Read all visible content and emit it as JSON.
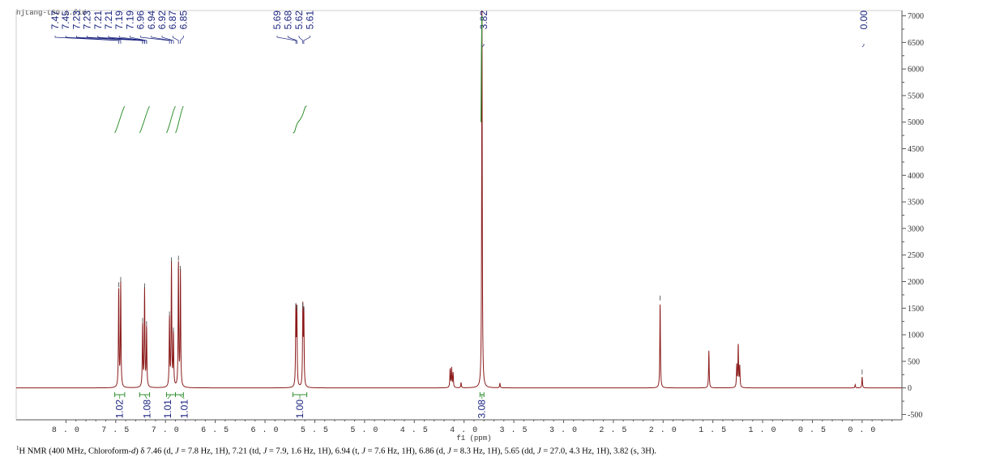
{
  "filename": "hjtang-t50.1.fid",
  "caption": {
    "nucleus_sup": "1",
    "before_d": "H NMR (400 MHz, Chloroform-",
    "d_letter": "d",
    "after_d": ") δ 7.46 (d, ",
    "rest": [
      {
        "J": "J",
        "t": " = 7.8 Hz, 1H), 7.21 (td, "
      },
      {
        "J": "J",
        "t": " = 7.9, 1.6 Hz, 1H), 6.94 (t, "
      },
      {
        "J": "J",
        "t": " = 7.6 Hz, 1H), 6.86 (d, "
      },
      {
        "J": "J",
        "t": " = 8.3 Hz, 1H), 5.65 (dd, "
      },
      {
        "J": "J",
        "t": " = 27.0, 4.3 Hz, 1H), 3.82 (s, 3H)."
      }
    ]
  },
  "colors": {
    "spectrum": "#8b1a1a",
    "integral": "#2f8f2f",
    "peak_label": "#1a237e",
    "axis": "#555555",
    "integral_label": "#1a237e"
  },
  "chart_data": {
    "type": "line",
    "title": "",
    "xlabel": "f1 (ppm)",
    "ylabel": "",
    "xlim": [
      8.5,
      -0.4
    ],
    "ylim": [
      -600,
      7100
    ],
    "x_ticks": [
      "8.0",
      "7.5",
      "7.0",
      "6.5",
      "6.0",
      "5.5",
      "5.0",
      "4.5",
      "4.0",
      "3.5",
      "3.0",
      "2.5",
      "2.0",
      "1.5",
      "1.0",
      "0.5",
      "0.0"
    ],
    "y_ticks": [
      "-500",
      "0",
      "500",
      "1000",
      "1500",
      "2000",
      "2500",
      "3000",
      "3500",
      "4000",
      "4500",
      "5000",
      "5500",
      "6000",
      "6500",
      "7000"
    ],
    "peaks": [
      {
        "ppm": 7.47,
        "height": 1850
      },
      {
        "ppm": 7.45,
        "height": 1950
      },
      {
        "ppm": 7.23,
        "height": 1180
      },
      {
        "ppm": 7.21,
        "height": 1830
      },
      {
        "ppm": 7.19,
        "height": 1120
      },
      {
        "ppm": 6.96,
        "height": 1300
      },
      {
        "ppm": 6.94,
        "height": 2320
      },
      {
        "ppm": 6.92,
        "height": 1000
      },
      {
        "ppm": 6.87,
        "height": 2350
      },
      {
        "ppm": 6.85,
        "height": 2160
      },
      {
        "ppm": 5.69,
        "height": 1460
      },
      {
        "ppm": 5.68,
        "height": 1400
      },
      {
        "ppm": 5.62,
        "height": 1460
      },
      {
        "ppm": 5.61,
        "height": 1400
      },
      {
        "ppm": 4.14,
        "height": 350
      },
      {
        "ppm": 4.125,
        "height": 370
      },
      {
        "ppm": 4.11,
        "height": 280
      },
      {
        "ppm": 4.03,
        "height": 100
      },
      {
        "ppm": 3.82,
        "height": 7100
      },
      {
        "ppm": 3.64,
        "height": 90
      },
      {
        "ppm": 2.03,
        "height": 1600
      },
      {
        "ppm": 1.54,
        "height": 700
      },
      {
        "ppm": 1.26,
        "height": 420
      },
      {
        "ppm": 1.245,
        "height": 800
      },
      {
        "ppm": 1.23,
        "height": 400
      },
      {
        "ppm": 0.07,
        "height": 60
      },
      {
        "ppm": 0.0,
        "height": 210
      }
    ],
    "peak_labels": [
      "7.47",
      "7.45",
      "7.23",
      "7.23",
      "7.21",
      "7.21",
      "7.19",
      "7.19",
      "6.96",
      "6.94",
      "6.92",
      "6.87",
      "6.85",
      "5.69",
      "5.68",
      "5.62",
      "5.61",
      "3.82",
      "0.00"
    ],
    "integrals": [
      {
        "from": 7.51,
        "to": 7.41,
        "value": "1.02"
      },
      {
        "from": 7.26,
        "to": 7.16,
        "value": "1.08"
      },
      {
        "from": 6.99,
        "to": 6.9,
        "value": "1.01"
      },
      {
        "from": 6.9,
        "to": 6.82,
        "value": "1.01"
      },
      {
        "from": 5.72,
        "to": 5.58,
        "value": "1.00"
      },
      {
        "from": 3.84,
        "to": 3.8,
        "value": "3.08"
      }
    ]
  }
}
